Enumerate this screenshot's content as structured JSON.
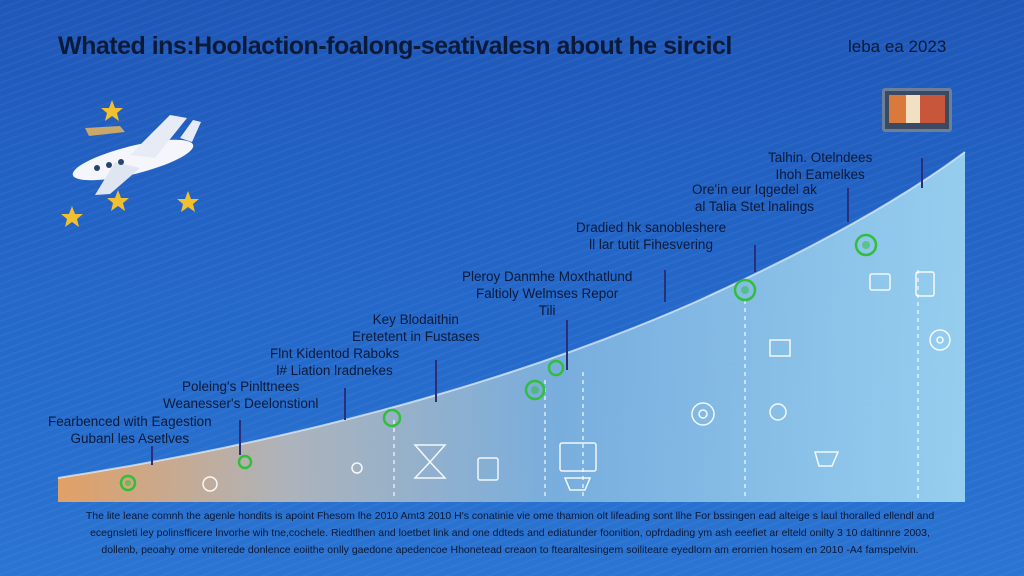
{
  "header": {
    "title": "Whated ins:Hoolaction-foalong-seativalesn about he sircicl",
    "date": "leba ea 2023"
  },
  "milestones": [
    {
      "lines": [
        "Fearbenced with Eagestion",
        "Gubanl les Asetlves"
      ]
    },
    {
      "lines": [
        "Poleing's Pinlttnees",
        "Weanesser's Deelonstionl"
      ]
    },
    {
      "lines": [
        "Flnt Kidentod Raboks",
        "l# Liation lradnekes"
      ]
    },
    {
      "lines": [
        "Key Blodaithin",
        "Eretetent in Fustases"
      ]
    },
    {
      "lines": [
        "Pleroy Danmhe Moxthatlund",
        "Faltioly Welmses Repor",
        "Tili"
      ]
    },
    {
      "lines": [
        "Dradied hk sanobleshere",
        "ll lar tutit Fihesvering"
      ]
    },
    {
      "lines": [
        "Ore'in eur Iqgedel ak",
        "al Talia Stet lnalings"
      ]
    },
    {
      "lines": [
        "Talhin. Otelndees",
        "Ihoh Eamelkes"
      ]
    }
  ],
  "footer": [
    "The lite leane comnh the agenle hondits is apoint Fhesom lhe 2010 Amt3 2010 H's conatinie vie ome thamion olt lifeading sont llhe For bssingen ead alteige s laul thoralled ellendl and",
    "ecegnsleti ley polinsfficere lnvorhe wih tne,cochele. Riedtlhen and loetbet link and one ddteds and ediatunder foonition, opfrdading ym ash eeefiet ar elteld onilty 3 10 daltinnre 2003,",
    "dollenb, peoahy ome vniterede donlence eoiithe onlly gaedone apedencoe Hhonetead creaon to ftearaltesingem soiliteare eyedlorn am erorrien hosem en 2010 -A4 famspelvin."
  ],
  "colors": {
    "background": "#2366c8",
    "curve_start": "#f0a05a",
    "curve_end": "#8fd0f0",
    "marker": "#2fbf3a",
    "text": "#0c1a3a",
    "leader": "#2a2f7a"
  },
  "icons": [
    "airplane-icon",
    "star-icon",
    "monitor-icon",
    "hourglass-icon",
    "target-icon",
    "tablet-icon",
    "document-icon",
    "gear-icon"
  ]
}
